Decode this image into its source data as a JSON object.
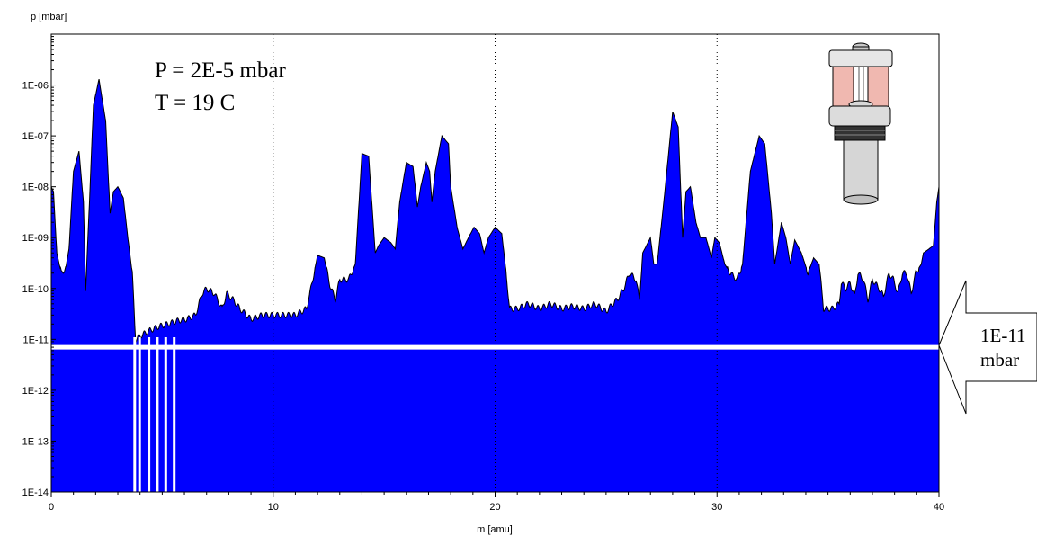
{
  "chart_data": {
    "type": "area",
    "title": "",
    "xlabel": "m [amu]",
    "ylabel": "p [mbar]",
    "xlim": [
      0,
      40
    ],
    "ylim": [
      1e-14,
      1e-05
    ],
    "y_scale": "log",
    "x_ticks": [
      0,
      10,
      20,
      30,
      40
    ],
    "y_tick_labels": [
      "1E-06",
      "1E-07",
      "1E-08",
      "1E-09",
      "1E-10",
      "1E-11",
      "1E-12",
      "1E-13",
      "1E-14"
    ],
    "y_tick_values": [
      1e-06,
      1e-07,
      1e-08,
      1e-09,
      1e-10,
      1e-11,
      1e-12,
      1e-13,
      1e-14
    ],
    "vertical_gridlines": [
      10,
      20,
      30
    ],
    "fill_color": "#0000ff",
    "outline_color": "#000000",
    "baseline_marker": {
      "value": 7e-12,
      "color": "#ffffff"
    },
    "annotations": [
      "P = 2E-5 mbar",
      "T = 19 C"
    ],
    "callout": {
      "line1": "1E-11",
      "line2": "mbar"
    },
    "series": [
      {
        "values": [
          [
            0.0,
            1e-08
          ],
          [
            0.1,
            8e-09
          ],
          [
            0.25,
            5e-10
          ],
          [
            0.45,
            2e-10
          ],
          [
            0.65,
            2.5e-10
          ],
          [
            0.8,
            6e-10
          ],
          [
            1.0,
            2e-08
          ],
          [
            1.25,
            5e-08
          ],
          [
            1.45,
            5e-09
          ],
          [
            1.55,
            1e-10
          ],
          [
            1.7,
            3e-09
          ],
          [
            1.9,
            4e-07
          ],
          [
            2.15,
            1.3e-06
          ],
          [
            2.45,
            2e-07
          ],
          [
            2.65,
            3e-09
          ],
          [
            2.8,
            8e-09
          ],
          [
            3.0,
            1e-08
          ],
          [
            3.25,
            6e-09
          ],
          [
            3.45,
            1e-09
          ],
          [
            3.65,
            2e-10
          ],
          [
            3.8,
            1e-11
          ],
          [
            4.05,
            1.2e-11
          ],
          [
            4.45,
            1.5e-11
          ],
          [
            4.85,
            1.8e-11
          ],
          [
            5.25,
            2e-11
          ],
          [
            5.65,
            2.3e-11
          ],
          [
            6.1,
            2.5e-11
          ],
          [
            6.5,
            3e-11
          ],
          [
            6.8,
            8e-11
          ],
          [
            7.0,
            1e-10
          ],
          [
            7.35,
            8e-11
          ],
          [
            7.7,
            4e-11
          ],
          [
            7.9,
            8e-11
          ],
          [
            8.2,
            6e-11
          ],
          [
            8.5,
            4e-11
          ],
          [
            8.8,
            3e-11
          ],
          [
            9.0,
            2.5e-11
          ],
          [
            9.5,
            3e-11
          ],
          [
            10.0,
            3e-11
          ],
          [
            10.5,
            3e-11
          ],
          [
            11.0,
            3e-11
          ],
          [
            11.5,
            4e-11
          ],
          [
            11.7,
            1e-10
          ],
          [
            12.0,
            4.5e-10
          ],
          [
            12.3,
            4e-10
          ],
          [
            12.55,
            1.2e-10
          ],
          [
            12.8,
            6e-11
          ],
          [
            13.0,
            1.5e-10
          ],
          [
            13.4,
            1.5e-10
          ],
          [
            13.7,
            3e-10
          ],
          [
            14.0,
            4.5e-08
          ],
          [
            14.3,
            4e-08
          ],
          [
            14.6,
            5e-10
          ],
          [
            14.75,
            7e-10
          ],
          [
            15.0,
            1e-09
          ],
          [
            15.3,
            8e-10
          ],
          [
            15.5,
            6e-10
          ],
          [
            15.7,
            5e-09
          ],
          [
            16.0,
            3e-08
          ],
          [
            16.3,
            2.5e-08
          ],
          [
            16.5,
            4e-09
          ],
          [
            16.65,
            1e-08
          ],
          [
            16.9,
            3e-08
          ],
          [
            17.05,
            2e-08
          ],
          [
            17.15,
            5e-09
          ],
          [
            17.3,
            2e-08
          ],
          [
            17.6,
            1e-07
          ],
          [
            17.9,
            7e-08
          ],
          [
            18.0,
            1e-08
          ],
          [
            18.3,
            1.5e-09
          ],
          [
            18.55,
            6e-10
          ],
          [
            18.8,
            1e-09
          ],
          [
            19.05,
            1.6e-09
          ],
          [
            19.3,
            1.2e-09
          ],
          [
            19.5,
            5e-10
          ],
          [
            19.7,
            1e-09
          ],
          [
            20.0,
            1.6e-09
          ],
          [
            20.3,
            1.2e-09
          ],
          [
            20.5,
            2e-10
          ],
          [
            20.65,
            4e-11
          ],
          [
            21.0,
            4e-11
          ],
          [
            21.5,
            5e-11
          ],
          [
            22.0,
            4e-11
          ],
          [
            22.5,
            5e-11
          ],
          [
            23.0,
            4e-11
          ],
          [
            23.5,
            4.5e-11
          ],
          [
            24.0,
            4e-11
          ],
          [
            24.5,
            5e-11
          ],
          [
            25.0,
            3.5e-11
          ],
          [
            25.3,
            5e-11
          ],
          [
            25.5,
            6e-11
          ],
          [
            25.8,
            1e-10
          ],
          [
            26.05,
            2e-10
          ],
          [
            26.35,
            1.5e-10
          ],
          [
            26.5,
            6e-11
          ],
          [
            26.65,
            5e-10
          ],
          [
            27.0,
            1e-09
          ],
          [
            27.15,
            3e-10
          ],
          [
            27.3,
            3e-10
          ],
          [
            27.6,
            5e-09
          ],
          [
            28.0,
            3e-07
          ],
          [
            28.25,
            1.5e-07
          ],
          [
            28.45,
            1e-09
          ],
          [
            28.6,
            8e-09
          ],
          [
            28.8,
            1e-08
          ],
          [
            29.05,
            2e-09
          ],
          [
            29.25,
            1e-09
          ],
          [
            29.5,
            1e-09
          ],
          [
            29.75,
            4e-10
          ],
          [
            29.9,
            1e-09
          ],
          [
            30.1,
            8e-10
          ],
          [
            30.35,
            3e-10
          ],
          [
            30.6,
            2e-10
          ],
          [
            30.9,
            1.5e-10
          ],
          [
            31.15,
            3e-10
          ],
          [
            31.5,
            2e-08
          ],
          [
            31.9,
            1e-07
          ],
          [
            32.15,
            7e-08
          ],
          [
            32.45,
            3e-09
          ],
          [
            32.6,
            3e-10
          ],
          [
            32.9,
            2e-09
          ],
          [
            33.1,
            1e-09
          ],
          [
            33.3,
            3e-10
          ],
          [
            33.5,
            9e-10
          ],
          [
            33.8,
            5e-10
          ],
          [
            34.1,
            2e-10
          ],
          [
            34.35,
            4e-10
          ],
          [
            34.6,
            3e-10
          ],
          [
            34.8,
            4e-11
          ],
          [
            35.2,
            4e-11
          ],
          [
            35.5,
            5e-11
          ],
          [
            35.6,
            1.3e-10
          ],
          [
            35.8,
            1e-10
          ],
          [
            36.0,
            1.3e-10
          ],
          [
            36.2,
            7e-11
          ],
          [
            36.35,
            2e-10
          ],
          [
            36.6,
            1.5e-10
          ],
          [
            36.8,
            6e-11
          ],
          [
            37.0,
            1.5e-10
          ],
          [
            37.3,
            1e-10
          ],
          [
            37.5,
            7e-11
          ],
          [
            37.75,
            2e-10
          ],
          [
            37.95,
            1.5e-10
          ],
          [
            38.15,
            8e-11
          ],
          [
            38.35,
            2e-10
          ],
          [
            38.55,
            2e-10
          ],
          [
            38.75,
            8e-11
          ],
          [
            38.95,
            2e-10
          ],
          [
            39.2,
            3e-10
          ],
          [
            39.3,
            5e-10
          ],
          [
            39.55,
            6e-10
          ],
          [
            39.75,
            7e-10
          ],
          [
            39.9,
            5e-09
          ],
          [
            40.0,
            1e-08
          ]
        ]
      }
    ]
  }
}
